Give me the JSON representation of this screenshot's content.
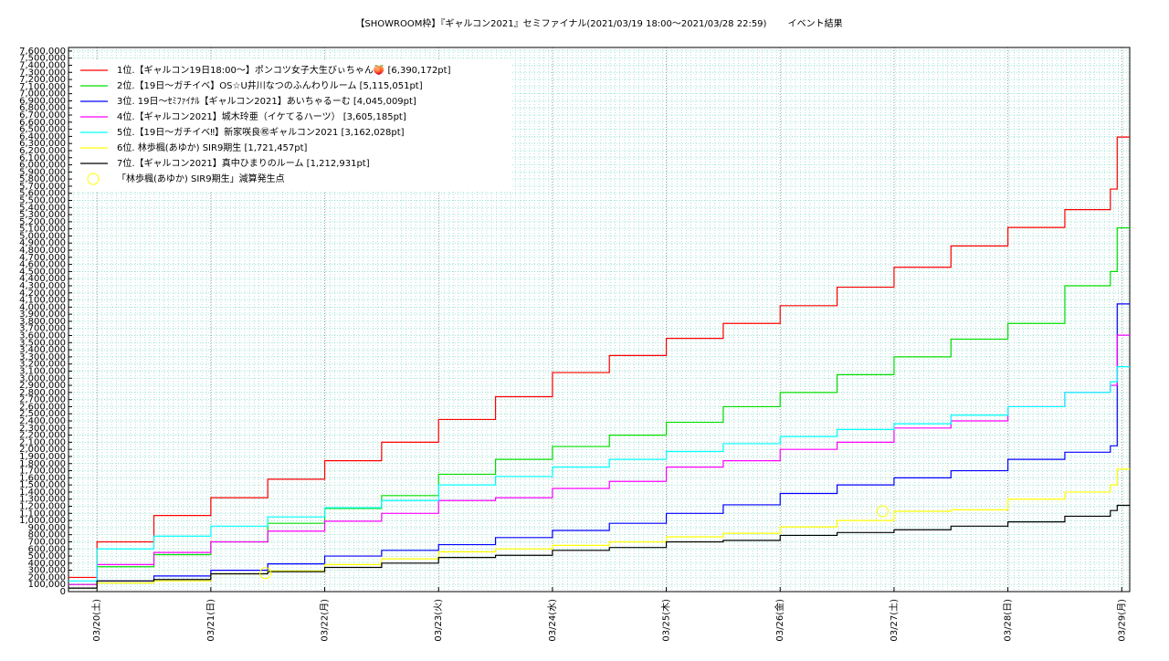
{
  "chart_data": {
    "type": "step-line",
    "title": "【SHOWROOM枠】『ギャルコン2021』セミファイナル(2021/03/19 18:00〜2021/03/28 22:59)　　 イベント結果",
    "x": [
      19.75,
      20,
      20.5,
      21,
      21.5,
      22,
      22.5,
      23,
      23.5,
      24,
      24.5,
      25,
      25.5,
      26,
      26.5,
      27,
      27.5,
      28,
      28.5,
      28.9,
      28.96
    ],
    "xlim": [
      19.75,
      29.07
    ],
    "xticks": [
      {
        "value": 20,
        "label": "03/20(土)"
      },
      {
        "value": 21,
        "label": "03/21(日)"
      },
      {
        "value": 22,
        "label": "03/22(月)"
      },
      {
        "value": 23,
        "label": "03/23(火)"
      },
      {
        "value": 24,
        "label": "03/24(水)"
      },
      {
        "value": 25,
        "label": "03/25(木)"
      },
      {
        "value": 26,
        "label": "03/26(金)"
      },
      {
        "value": 27,
        "label": "03/27(土)"
      },
      {
        "value": 28,
        "label": "03/28(日)"
      },
      {
        "value": 29,
        "label": "03/29(月)"
      }
    ],
    "ylim": [
      0,
      7650000
    ],
    "yticks": [
      0,
      {
        "value": 100000,
        "label": "100,000"
      },
      {
        "value": 200000,
        "label": "200,000"
      },
      {
        "value": 300000,
        "label": "300,000"
      },
      {
        "value": 400000,
        "label": "400,000"
      },
      {
        "value": 500000,
        "label": "500,000"
      },
      {
        "value": 600000,
        "label": "600,000"
      },
      {
        "value": 700000,
        "label": "700,000"
      },
      {
        "value": 800000,
        "label": "800,000"
      },
      {
        "value": 900000,
        "label": "900,000"
      },
      {
        "value": 1000000,
        "label": "1,000,000"
      },
      {
        "value": 1100000,
        "label": "1,100,000"
      },
      {
        "value": 1200000,
        "label": "1,200,000"
      },
      {
        "value": 1300000,
        "label": "1,300,000"
      },
      {
        "value": 1400000,
        "label": "1,400,000"
      },
      {
        "value": 1500000,
        "label": "1,500,000"
      },
      {
        "value": 1600000,
        "label": "1,600,000"
      },
      {
        "value": 1700000,
        "label": "1,700,000"
      },
      {
        "value": 1800000,
        "label": "1,800,000"
      },
      {
        "value": 1900000,
        "label": "1,900,000"
      },
      {
        "value": 2000000,
        "label": "2,000,000"
      },
      {
        "value": 2100000,
        "label": "2,100,000"
      },
      {
        "value": 2200000,
        "label": "2,200,000"
      },
      {
        "value": 2300000,
        "label": "2,300,000"
      },
      {
        "value": 2400000,
        "label": "2,400,000"
      },
      {
        "value": 2500000,
        "label": "2,500,000"
      },
      {
        "value": 2600000,
        "label": "2,600,000"
      },
      {
        "value": 2700000,
        "label": "2,700,000"
      },
      {
        "value": 2800000,
        "label": "2,800,000"
      },
      {
        "value": 2900000,
        "label": "2,900,000"
      },
      {
        "value": 3000000,
        "label": "3,000,000"
      },
      {
        "value": 3100000,
        "label": "3,100,000"
      },
      {
        "value": 3200000,
        "label": "3,200,000"
      },
      {
        "value": 3300000,
        "label": "3,300,000"
      },
      {
        "value": 3400000,
        "label": "3,400,000"
      },
      {
        "value": 3500000,
        "label": "3,500,000"
      },
      {
        "value": 3600000,
        "label": "3,600,000"
      },
      {
        "value": 3700000,
        "label": "3,700,000"
      },
      {
        "value": 3800000,
        "label": "3,800,000"
      },
      {
        "value": 3900000,
        "label": "3,900,000"
      },
      {
        "value": 4000000,
        "label": "4,000,000"
      },
      {
        "value": 4100000,
        "label": "4,100,000"
      },
      {
        "value": 4200000,
        "label": "4,200,000"
      },
      {
        "value": 4300000,
        "label": "4,300,000"
      },
      {
        "value": 4400000,
        "label": "4,400,000"
      },
      {
        "value": 4500000,
        "label": "4,500,000"
      },
      {
        "value": 4600000,
        "label": "4,600,000"
      },
      {
        "value": 4700000,
        "label": "4,700,000"
      },
      {
        "value": 4800000,
        "label": "4,800,000"
      },
      {
        "value": 4900000,
        "label": "4,900,000"
      },
      {
        "value": 5000000,
        "label": "5,000,000"
      },
      {
        "value": 5100000,
        "label": "5,100,000"
      },
      {
        "value": 5200000,
        "label": "5,200,000"
      },
      {
        "value": 5300000,
        "label": "5,300,000"
      },
      {
        "value": 5400000,
        "label": "5,400,000"
      },
      {
        "value": 5500000,
        "label": "5,500,000"
      },
      {
        "value": 5600000,
        "label": "5,600,000"
      },
      {
        "value": 5700000,
        "label": "5,700,000"
      },
      {
        "value": 5800000,
        "label": "5,800,000"
      },
      {
        "value": 5900000,
        "label": "5,900,000"
      },
      {
        "value": 6000000,
        "label": "6,000,000"
      },
      {
        "value": 6100000,
        "label": "6,100,000"
      },
      {
        "value": 6200000,
        "label": "6,200,000"
      },
      {
        "value": 6300000,
        "label": "6,300,000"
      },
      {
        "value": 6400000,
        "label": "6,400,000"
      },
      {
        "value": 6500000,
        "label": "6,500,000"
      },
      {
        "value": 6600000,
        "label": "6,600,000"
      },
      {
        "value": 6700000,
        "label": "6,700,000"
      },
      {
        "value": 6800000,
        "label": "6,800,000"
      },
      {
        "value": 6900000,
        "label": "6,900,000"
      },
      {
        "value": 7000000,
        "label": "7,000,000"
      },
      {
        "value": 7100000,
        "label": "7,100,000"
      },
      {
        "value": 7200000,
        "label": "7,200,000"
      },
      {
        "value": 7300000,
        "label": "7,300,000"
      },
      {
        "value": 7400000,
        "label": "7,400,000"
      },
      {
        "value": 7500000,
        "label": "7,500,000"
      },
      {
        "value": 7600000,
        "label": "7,600,000"
      }
    ],
    "grid": true,
    "legend": "upper-left",
    "series": [
      {
        "name": "1位.【ギャルコン19日18:00〜】ポンコツ女子大生びぃちゃん🍑 [6,390,172pt]",
        "color": "#ff0000",
        "values": [
          200000,
          700000,
          1070000,
          1320000,
          1580000,
          1840000,
          2100000,
          2420000,
          2740000,
          3080000,
          3320000,
          3560000,
          3770000,
          4020000,
          4280000,
          4560000,
          4860000,
          5120000,
          5370000,
          5660000,
          6390172
        ]
      },
      {
        "name": "2位.【19日〜ガチイベ】OS☆U井川なつのふんわりルーム [5,115,051pt]",
        "color": "#00dd00",
        "values": [
          100000,
          350000,
          520000,
          700000,
          960000,
          1170000,
          1350000,
          1650000,
          1860000,
          2040000,
          2200000,
          2380000,
          2600000,
          2800000,
          3050000,
          3300000,
          3550000,
          3770000,
          4300000,
          4500000,
          5115051
        ]
      },
      {
        "name": "3位. 19日〜ｾﾐﾌｧｲﾅﾙ【ギャルコン2021】あいちゃるーむ [4,045,009pt]",
        "color": "#0000ff",
        "values": [
          50000,
          150000,
          220000,
          300000,
          390000,
          500000,
          580000,
          660000,
          760000,
          860000,
          960000,
          1100000,
          1220000,
          1380000,
          1500000,
          1600000,
          1700000,
          1860000,
          1960000,
          2050000,
          4045009
        ]
      },
      {
        "name": "4位.【ギャルコン2021】城木玲亜（イケてるハーツ） [3,605,185pt]",
        "color": "#ff00ff",
        "values": [
          100000,
          380000,
          550000,
          700000,
          850000,
          990000,
          1100000,
          1280000,
          1320000,
          1450000,
          1550000,
          1750000,
          1840000,
          2000000,
          2100000,
          2300000,
          2400000,
          2600000,
          2800000,
          2900000,
          3605185
        ]
      },
      {
        "name": "5位.【19日〜ガチイベ‼】新家咲良㊗ギャルコン2021 [3,162,028pt]",
        "color": "#00ffff",
        "values": [
          150000,
          600000,
          780000,
          920000,
          1050000,
          1180000,
          1280000,
          1500000,
          1620000,
          1750000,
          1860000,
          1970000,
          2080000,
          2180000,
          2280000,
          2360000,
          2480000,
          2600000,
          2800000,
          2950000,
          3162028
        ]
      },
      {
        "name": "6位. 林歩楓(あゆか) SIR9期生 [1,721,457pt]",
        "color": "#ffff00",
        "values": [
          50000,
          120000,
          150000,
          250000,
          290000,
          380000,
          460000,
          560000,
          600000,
          650000,
          700000,
          770000,
          820000,
          910000,
          1000000,
          1130000,
          1150000,
          1300000,
          1400000,
          1500000,
          1721457
        ]
      },
      {
        "name": "7位.【ギャルコン2021】真中ひまりのルーム [1,212,931pt]",
        "color": "#000000",
        "values": [
          50000,
          150000,
          170000,
          250000,
          280000,
          340000,
          400000,
          480000,
          510000,
          580000,
          620000,
          700000,
          720000,
          790000,
          830000,
          870000,
          920000,
          980000,
          1060000,
          1140000,
          1212931
        ]
      }
    ],
    "markers": {
      "name": "「林歩楓(あゆか) SIR9期生」減算発生点",
      "color": "#ffff00",
      "x": [
        21.48,
        26.9
      ],
      "y": [
        260000,
        1131000
      ]
    }
  }
}
